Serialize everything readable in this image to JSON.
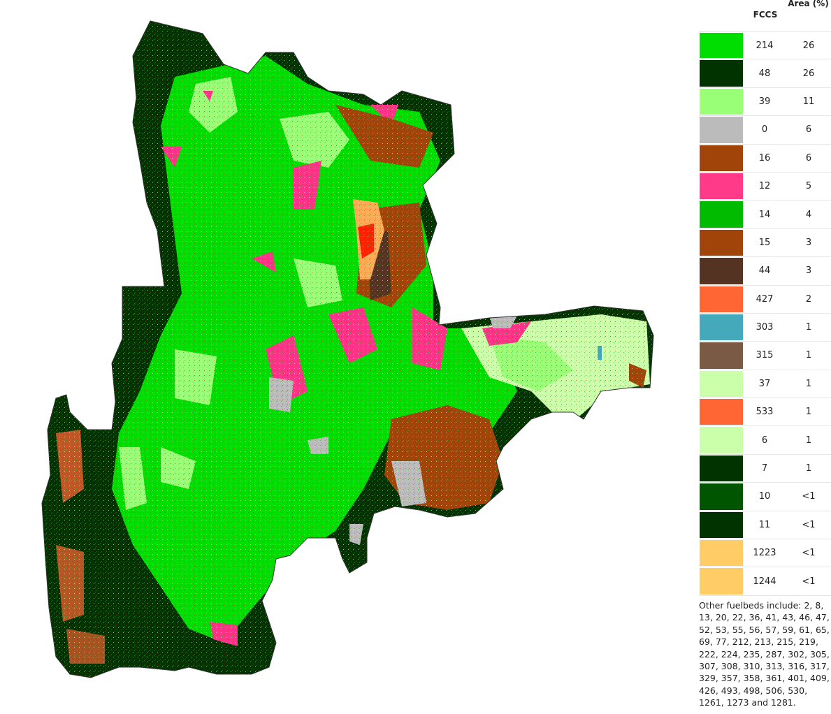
{
  "map": {
    "region_colors": {
      "dark_forest": "#003300",
      "bright_green": "#00dd00",
      "light_green": "#99ff77",
      "medium_green": "#00bb00",
      "pink": "#ff3388",
      "brown": "#a0440a",
      "dark_brown": "#553322",
      "gray": "#bbbbbb",
      "orange": "#ff6633",
      "red": "#ff2200",
      "pale_green": "#ccffaa",
      "teal": "#44aabb"
    }
  },
  "legend": {
    "header_fccs": "FCCS",
    "header_area": "Area (%)",
    "rows": [
      {
        "code": "214",
        "area": "26",
        "color": "#00dd00"
      },
      {
        "code": "48",
        "area": "26",
        "color": "#003300"
      },
      {
        "code": "39",
        "area": "11",
        "color": "#99ff77"
      },
      {
        "code": "0",
        "area": "6",
        "color": "#bbbbbb"
      },
      {
        "code": "16",
        "area": "6",
        "color": "#a0440a"
      },
      {
        "code": "12",
        "area": "5",
        "color": "#ff3a88"
      },
      {
        "code": "14",
        "area": "4",
        "color": "#00bb00"
      },
      {
        "code": "15",
        "area": "3",
        "color": "#a0440a"
      },
      {
        "code": "44",
        "area": "3",
        "color": "#553322"
      },
      {
        "code": "427",
        "area": "2",
        "color": "#ff6633"
      },
      {
        "code": "303",
        "area": "1",
        "color": "#44aabb"
      },
      {
        "code": "315",
        "area": "1",
        "color": "#7a5a44"
      },
      {
        "code": "37",
        "area": "1",
        "color": "#ccffaa"
      },
      {
        "code": "533",
        "area": "1",
        "color": "#ff6633"
      },
      {
        "code": "6",
        "area": "1",
        "color": "#ccffaa"
      },
      {
        "code": "7",
        "area": "1",
        "color": "#003300"
      },
      {
        "code": "10",
        "area": "<1",
        "color": "#005500"
      },
      {
        "code": "11",
        "area": "<1",
        "color": "#003300"
      },
      {
        "code": "1223",
        "area": "<1",
        "color": "#ffcc66"
      },
      {
        "code": "1244",
        "area": "<1",
        "color": "#ffcc66"
      }
    ],
    "other_text": "Other fuelbeds include: 2, 8, 13, 20, 22, 36, 41, 43, 46, 47, 52, 53, 55, 56, 57, 59, 61, 65, 69, 77, 212, 213, 215, 219, 222, 224, 235, 287, 302, 305, 307, 308, 310, 313, 316, 317, 329, 357, 358, 361, 401, 409, 426, 493, 498, 506, 530, 1261, 1273 and 1281."
  }
}
